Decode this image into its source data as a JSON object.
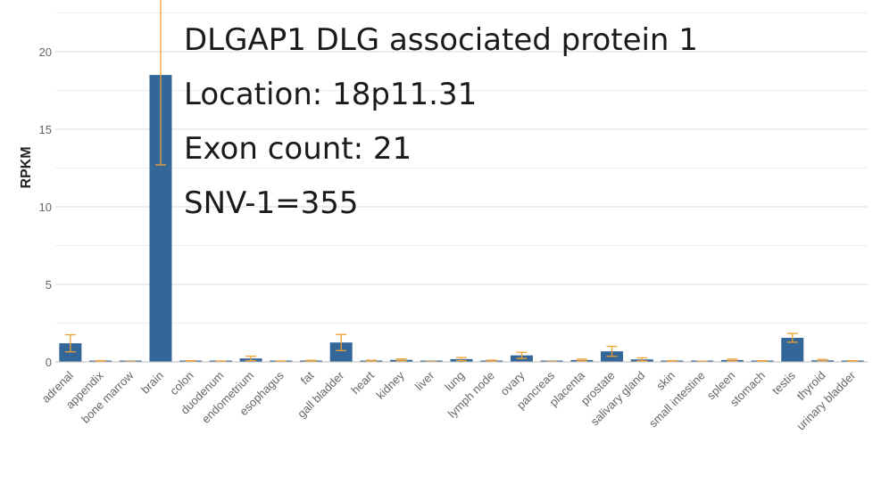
{
  "chart_data": {
    "type": "bar",
    "ylabel": "RPKM",
    "xlabel": "",
    "ylim": [
      0,
      22.5
    ],
    "yticks": [
      0,
      5,
      10,
      15,
      20
    ],
    "grid": true,
    "bar_color": "#336699",
    "error_color": "#f0a030",
    "categories": [
      "adrenal",
      "appendix",
      "bone marrow",
      "brain",
      "colon",
      "duodenum",
      "endometrium",
      "esophagus",
      "fat",
      "gall bladder",
      "heart",
      "kidney",
      "liver",
      "lung",
      "lymph node",
      "ovary",
      "pancreas",
      "placenta",
      "prostate",
      "salivary gland",
      "skin",
      "small intestine",
      "spleen",
      "stomach",
      "testis",
      "thyroid",
      "urinary bladder"
    ],
    "values": [
      1.2,
      0.05,
      0.02,
      18.5,
      0.05,
      0.04,
      0.22,
      0.04,
      0.06,
      1.25,
      0.07,
      0.13,
      0.02,
      0.18,
      0.07,
      0.42,
      0.02,
      0.12,
      0.68,
      0.16,
      0.05,
      0.03,
      0.12,
      0.05,
      1.55,
      0.1,
      0.05
    ],
    "errors": [
      0.55,
      0.03,
      0.01,
      5.8,
      0.03,
      0.02,
      0.14,
      0.02,
      0.04,
      0.52,
      0.04,
      0.06,
      0.01,
      0.1,
      0.04,
      0.2,
      0.01,
      0.06,
      0.32,
      0.1,
      0.03,
      0.02,
      0.06,
      0.03,
      0.28,
      0.06,
      0.03
    ],
    "annotations": [
      "DLGAP1 DLG associated protein 1",
      "Location: 18p11.31",
      "Exon count: 21",
      "SNV-1=355"
    ]
  }
}
